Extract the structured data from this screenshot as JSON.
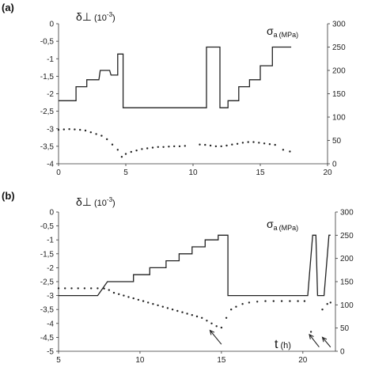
{
  "chart_data": [
    {
      "type": "line",
      "panel_label": "(a)",
      "xlim": [
        0,
        20
      ],
      "x_ticks": [
        0,
        5,
        10,
        15,
        20
      ],
      "ylabel": "δ⊥ (10-3)",
      "ylabel_main": "δ⊥",
      "ylabel_unit": "(10",
      "ylabel_exp": "-3",
      "ylabel_close": ")",
      "ylim": [
        -4,
        0
      ],
      "y_ticks": [
        "0",
        "-0,5",
        "-1",
        "-1,5",
        "-2",
        "-2,5",
        "-3",
        "-3,5",
        "-4"
      ],
      "y_tick_values": [
        0,
        -0.5,
        -1,
        -1.5,
        -2,
        -2.5,
        -3,
        -3.5,
        -4
      ],
      "y2label": "σa (MPa)",
      "y2label_main": "σ",
      "y2label_sub": "a",
      "y2label_unit": "(MPa)",
      "y2lim": [
        0,
        300
      ],
      "y2_ticks": [
        0,
        50,
        100,
        150,
        200,
        250,
        300
      ],
      "series": [
        {
          "axis": "right",
          "style": "line",
          "x": [
            0,
            1.3,
            1.3,
            2.1,
            2.1,
            3.0,
            3.1,
            3.8,
            3.9,
            4.4,
            4.4,
            4.8,
            4.8,
            11.0,
            11.0,
            12.0,
            12.0,
            12.6,
            12.6,
            13.4,
            13.4,
            14.2,
            14.2,
            15.0,
            15.0,
            15.9,
            15.9,
            17.3
          ],
          "y": [
            135,
            135,
            165,
            165,
            180,
            180,
            200,
            200,
            190,
            190,
            235,
            235,
            120,
            120,
            250,
            250,
            120,
            120,
            135,
            135,
            165,
            165,
            180,
            180,
            210,
            210,
            250,
            250
          ]
        },
        {
          "axis": "left",
          "style": "points",
          "x": [
            0.0,
            0.4,
            0.8,
            1.2,
            1.6,
            2.0,
            2.4,
            2.8,
            3.2,
            3.6,
            4.0,
            4.4,
            4.7,
            5.0,
            5.4,
            5.8,
            6.2,
            6.6,
            7.0,
            7.4,
            7.8,
            8.2,
            8.6,
            9.0,
            9.4,
            10.5,
            10.9,
            11.3,
            11.7,
            12.1,
            12.5,
            12.9,
            13.3,
            13.7,
            14.1,
            14.5,
            14.9,
            15.3,
            15.7,
            16.1,
            16.7,
            17.2
          ],
          "y": [
            -3.03,
            -3.02,
            -3.01,
            -3.02,
            -3.03,
            -3.05,
            -3.1,
            -3.15,
            -3.2,
            -3.3,
            -3.45,
            -3.6,
            -3.8,
            -3.72,
            -3.66,
            -3.62,
            -3.58,
            -3.56,
            -3.54,
            -3.52,
            -3.52,
            -3.51,
            -3.5,
            -3.5,
            -3.49,
            -3.45,
            -3.46,
            -3.48,
            -3.5,
            -3.5,
            -3.48,
            -3.45,
            -3.43,
            -3.4,
            -3.38,
            -3.38,
            -3.4,
            -3.42,
            -3.44,
            -3.46,
            -3.6,
            -3.65
          ]
        }
      ]
    },
    {
      "type": "line",
      "panel_label": "(b)",
      "xlim": [
        5,
        22
      ],
      "x_ticks": [
        5,
        10,
        15,
        20
      ],
      "xlabel": "t (h)",
      "xlabel_main": "t",
      "xlabel_unit": "(h)",
      "ylabel": "δ⊥ (10-3)",
      "ylabel_main": "δ⊥",
      "ylabel_unit": "(10",
      "ylabel_exp": "-3",
      "ylabel_close": ")",
      "ylim": [
        -5,
        0
      ],
      "y_ticks": [
        "0",
        "-0,5",
        "-1",
        "-1,5",
        "-2",
        "-2,5",
        "-3",
        "-3,5",
        "-4",
        "-4,5",
        "-5"
      ],
      "y_tick_values": [
        0,
        -0.5,
        -1,
        -1.5,
        -2,
        -2.5,
        -3,
        -3.5,
        -4,
        -4.5,
        -5
      ],
      "y2label": "σa (MPa)",
      "y2label_main": "σ",
      "y2label_sub": "a",
      "y2label_unit": "(MPa)",
      "y2lim": [
        0,
        300
      ],
      "y2_ticks": [
        0,
        50,
        100,
        150,
        200,
        250,
        300
      ],
      "series": [
        {
          "axis": "right",
          "style": "line",
          "x": [
            5,
            7.4,
            8.0,
            9.6,
            9.6,
            10.6,
            10.6,
            11.6,
            11.6,
            12.4,
            12.4,
            13.2,
            13.2,
            14.0,
            14.0,
            14.8,
            14.8,
            15.4,
            15.4,
            20.3,
            20.6,
            20.8,
            20.9,
            21.3,
            21.6,
            21.7
          ],
          "y": [
            120,
            120,
            150,
            150,
            165,
            165,
            180,
            180,
            195,
            195,
            210,
            210,
            225,
            225,
            240,
            240,
            250,
            250,
            120,
            120,
            250,
            250,
            120,
            120,
            250,
            250
          ]
        },
        {
          "axis": "left",
          "style": "points",
          "x": [
            5.0,
            5.4,
            5.8,
            6.2,
            6.6,
            7.0,
            7.4,
            7.8,
            8.1,
            8.4,
            8.7,
            9.0,
            9.3,
            9.6,
            9.9,
            10.2,
            10.5,
            10.8,
            11.1,
            11.4,
            11.7,
            12.0,
            12.3,
            12.6,
            12.9,
            13.2,
            13.5,
            13.8,
            14.1,
            14.4,
            14.7,
            15.0,
            15.3,
            15.6,
            15.9,
            16.3,
            16.7,
            17.2,
            17.7,
            18.2,
            18.7,
            19.2,
            19.7,
            20.1,
            20.5,
            21.2,
            21.5,
            21.7
          ],
          "y": [
            -2.74,
            -2.74,
            -2.74,
            -2.74,
            -2.74,
            -2.74,
            -2.74,
            -2.75,
            -2.8,
            -2.9,
            -2.95,
            -3.0,
            -3.05,
            -3.1,
            -3.15,
            -3.2,
            -3.25,
            -3.3,
            -3.35,
            -3.4,
            -3.45,
            -3.5,
            -3.55,
            -3.6,
            -3.65,
            -3.7,
            -3.75,
            -3.8,
            -3.9,
            -4.0,
            -4.1,
            -4.15,
            -3.8,
            -3.5,
            -3.4,
            -3.3,
            -3.25,
            -3.22,
            -3.2,
            -3.2,
            -3.2,
            -3.2,
            -3.2,
            -3.2,
            -4.3,
            -3.5,
            -3.3,
            -3.25
          ]
        }
      ],
      "arrows": [
        {
          "from": [
            15.0,
            -4.75
          ],
          "to": [
            14.3,
            -4.25
          ]
        },
        {
          "from": [
            21.0,
            -4.85
          ],
          "to": [
            20.4,
            -4.4
          ]
        },
        {
          "from": [
            21.7,
            -4.85
          ],
          "to": [
            21.2,
            -4.5
          ]
        }
      ]
    }
  ]
}
